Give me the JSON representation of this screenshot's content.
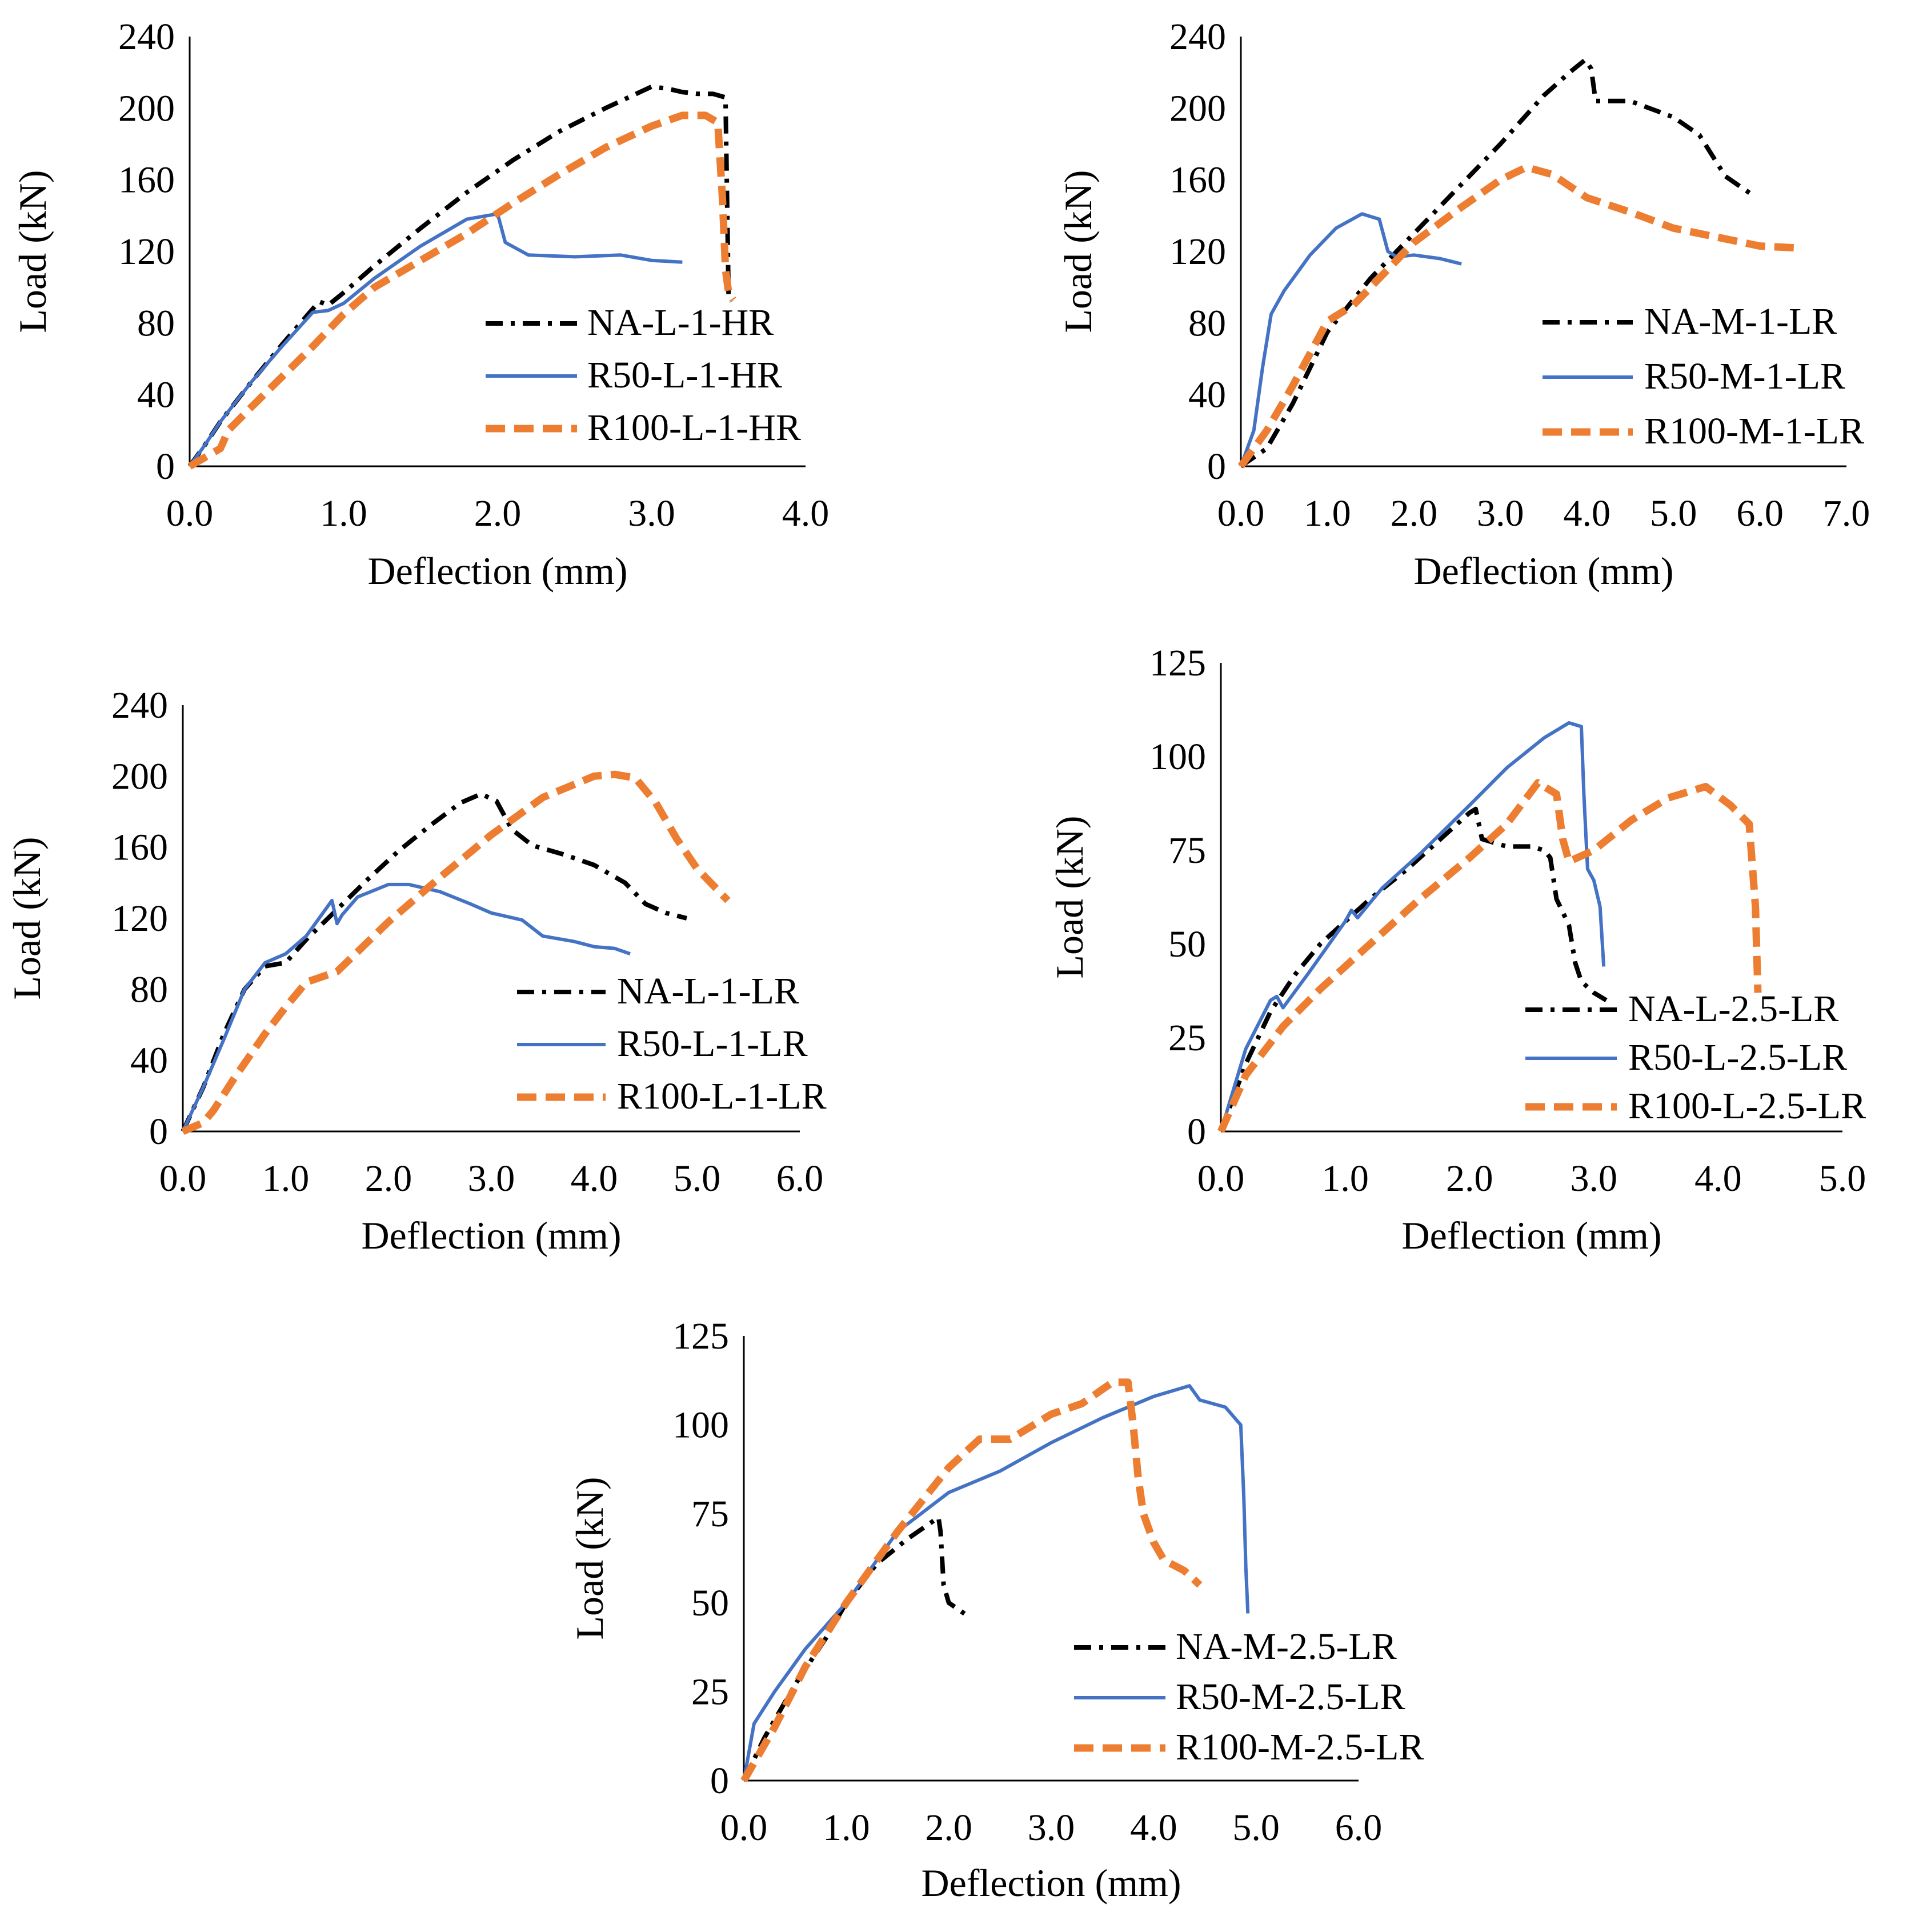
{
  "colors": {
    "NA": "#000000",
    "R50": "#4472C4",
    "R100": "#ED7D31",
    "axis": "#000000"
  },
  "chart_data": [
    {
      "type": "line",
      "panel": "top-left",
      "title": "",
      "xlabel": "Deflection (mm)",
      "ylabel": "Load (kN)",
      "xlim": [
        0,
        4
      ],
      "ylim": [
        0,
        240
      ],
      "xticks": [
        "0.0",
        "1.0",
        "2.0",
        "3.0",
        "4.0"
      ],
      "yticks": [
        "0",
        "40",
        "80",
        "120",
        "160",
        "200",
        "240"
      ],
      "grid": false,
      "legend_position": "lower-right",
      "series": [
        {
          "name": "NA-L-1-HR",
          "style": "dashdot",
          "color_key": "NA",
          "x": [
            0,
            0.1,
            0.2,
            0.4,
            0.6,
            0.8,
            0.84,
            0.9,
            1.0,
            1.2,
            1.5,
            1.8,
            2.1,
            2.4,
            2.7,
            2.9,
            3.0,
            3.1,
            3.2,
            3.3,
            3.4,
            3.48,
            3.5,
            3.52
          ],
          "y": [
            0,
            12,
            25,
            47,
            68,
            88,
            92,
            90,
            97,
            112,
            133,
            153,
            171,
            187,
            200,
            208,
            212,
            211,
            209,
            208,
            208,
            206,
            95,
            92
          ]
        },
        {
          "name": "R50-L-1-HR",
          "style": "solid",
          "color_key": "R50",
          "x": [
            0,
            0.1,
            0.2,
            0.4,
            0.6,
            0.8,
            0.9,
            1.0,
            1.2,
            1.5,
            1.8,
            2.0,
            2.05,
            2.2,
            2.5,
            2.8,
            3.0,
            3.2
          ],
          "y": [
            0,
            12,
            25,
            47,
            67,
            86,
            87,
            91,
            105,
            123,
            138,
            141,
            125,
            118,
            117,
            118,
            115,
            114
          ]
        },
        {
          "name": "R100-L-1-HR",
          "style": "dashed",
          "color_key": "R100",
          "x": [
            0,
            0.2,
            0.25,
            0.4,
            0.6,
            0.8,
            1.0,
            1.2,
            1.5,
            1.8,
            2.1,
            2.4,
            2.7,
            3.0,
            3.2,
            3.35,
            3.43,
            3.46,
            3.48,
            3.5,
            3.53
          ],
          "y": [
            0,
            10,
            20,
            33,
            50,
            67,
            85,
            100,
            115,
            130,
            147,
            163,
            178,
            190,
            196,
            196,
            192,
            150,
            110,
            97,
            93
          ]
        }
      ]
    },
    {
      "type": "line",
      "panel": "top-right",
      "title": "",
      "xlabel": "Deflection (mm)",
      "ylabel": "Load (kN)",
      "xlim": [
        0,
        7
      ],
      "ylim": [
        0,
        240
      ],
      "xticks": [
        "0.0",
        "1.0",
        "2.0",
        "3.0",
        "4.0",
        "5.0",
        "6.0",
        "7.0"
      ],
      "yticks": [
        "0",
        "40",
        "80",
        "120",
        "160",
        "200",
        "240"
      ],
      "grid": false,
      "legend_position": "lower-right",
      "series": [
        {
          "name": "NA-M-1-LR",
          "style": "dashdot",
          "color_key": "NA",
          "x": [
            0,
            0.3,
            0.6,
            1.0,
            1.5,
            2.0,
            2.5,
            3.0,
            3.5,
            3.8,
            3.98,
            4.05,
            4.1,
            4.5,
            5.0,
            5.3,
            5.6,
            5.9
          ],
          "y": [
            0,
            10,
            35,
            75,
            105,
            130,
            155,
            180,
            207,
            220,
            227,
            222,
            204,
            204,
            195,
            185,
            162,
            152
          ]
        },
        {
          "name": "R50-M-1-LR",
          "style": "solid",
          "color_key": "R50",
          "x": [
            0,
            0.15,
            0.25,
            0.35,
            0.5,
            0.8,
            1.1,
            1.4,
            1.6,
            1.7,
            1.8,
            2.0,
            2.3,
            2.55
          ],
          "y": [
            0,
            20,
            55,
            85,
            98,
            118,
            133,
            141,
            138,
            120,
            117,
            118,
            116,
            113
          ]
        },
        {
          "name": "R100-M-1-LR",
          "style": "dashed",
          "color_key": "R100",
          "x": [
            0,
            0.3,
            0.6,
            0.9,
            1.0,
            1.3,
            1.6,
            2.0,
            2.5,
            3.0,
            3.3,
            3.6,
            4.0,
            4.5,
            5.0,
            5.5,
            6.0,
            6.4
          ],
          "y": [
            0,
            20,
            45,
            72,
            81,
            90,
            105,
            125,
            143,
            160,
            167,
            163,
            150,
            142,
            133,
            128,
            123,
            122
          ]
        }
      ]
    },
    {
      "type": "line",
      "panel": "middle-left",
      "title": "",
      "xlabel": "Deflection (mm)",
      "ylabel": "Load (kN)",
      "xlim": [
        0,
        6
      ],
      "ylim": [
        0,
        240
      ],
      "xticks": [
        "0.0",
        "1.0",
        "2.0",
        "3.0",
        "4.0",
        "5.0",
        "6.0"
      ],
      "yticks": [
        "0",
        "40",
        "80",
        "120",
        "160",
        "200",
        "240"
      ],
      "grid": false,
      "legend_position": "lower-right",
      "series": [
        {
          "name": "NA-L-1-LR",
          "style": "dashdot",
          "color_key": "NA",
          "x": [
            0,
            0.2,
            0.4,
            0.6,
            0.8,
            1.0,
            1.2,
            1.5,
            1.8,
            2.1,
            2.4,
            2.7,
            2.9,
            3.05,
            3.2,
            3.4,
            3.7,
            4.0,
            4.3,
            4.5,
            4.7,
            4.9
          ],
          "y": [
            0,
            25,
            55,
            80,
            93,
            95,
            108,
            125,
            142,
            158,
            172,
            185,
            190,
            186,
            170,
            161,
            156,
            150,
            140,
            128,
            123,
            120
          ]
        },
        {
          "name": "R50-L-1-LR",
          "style": "solid",
          "color_key": "R50",
          "x": [
            0,
            0.2,
            0.4,
            0.6,
            0.8,
            1.0,
            1.2,
            1.45,
            1.5,
            1.55,
            1.7,
            2.0,
            2.2,
            2.5,
            2.8,
            3.0,
            3.3,
            3.5,
            3.8,
            4.0,
            4.2,
            4.35
          ],
          "y": [
            0,
            25,
            52,
            80,
            95,
            100,
            110,
            130,
            117,
            122,
            132,
            139,
            139,
            135,
            128,
            123,
            119,
            110,
            107,
            104,
            103,
            100
          ]
        },
        {
          "name": "R100-L-1-LR",
          "style": "dashed",
          "color_key": "R100",
          "x": [
            0,
            0.2,
            0.3,
            0.5,
            0.8,
            1.0,
            1.2,
            1.5,
            2.0,
            2.5,
            3.0,
            3.5,
            4.0,
            4.2,
            4.4,
            4.6,
            4.8,
            5.0,
            5.3
          ],
          "y": [
            0,
            5,
            12,
            30,
            55,
            70,
            84,
            90,
            118,
            143,
            167,
            188,
            200,
            201,
            199,
            185,
            165,
            148,
            130
          ]
        }
      ]
    },
    {
      "type": "line",
      "panel": "middle-right",
      "title": "",
      "xlabel": "Deflection (mm)",
      "ylabel": "Load (kN)",
      "xlim": [
        0,
        5
      ],
      "ylim": [
        0,
        125
      ],
      "xticks": [
        "0.0",
        "1.0",
        "2.0",
        "3.0",
        "4.0",
        "5.0"
      ],
      "yticks": [
        "0",
        "25",
        "50",
        "75",
        "100",
        "125"
      ],
      "grid": false,
      "legend_position": "lower-right",
      "series": [
        {
          "name": "NA-L-2.5-LR",
          "style": "dashdot",
          "color_key": "NA",
          "x": [
            0,
            0.2,
            0.4,
            0.6,
            0.8,
            1.0,
            1.2,
            1.5,
            1.8,
            2.0,
            2.05,
            2.1,
            2.3,
            2.5,
            2.6,
            2.65,
            2.7,
            2.8,
            2.85,
            2.9,
            3.0,
            3.1
          ],
          "y": [
            0,
            18,
            32,
            42,
            50,
            56,
            62,
            70,
            79,
            85,
            86,
            78,
            76,
            76,
            75,
            73,
            62,
            55,
            45,
            40,
            37,
            35
          ]
        },
        {
          "name": "R50-L-2.5-LR",
          "style": "solid",
          "color_key": "R50",
          "x": [
            0,
            0.2,
            0.4,
            0.45,
            0.5,
            0.7,
            1.0,
            1.05,
            1.1,
            1.3,
            1.6,
            2.0,
            2.3,
            2.6,
            2.8,
            2.9,
            2.92,
            2.95,
            3.0,
            3.05,
            3.08
          ],
          "y": [
            0,
            22,
            35,
            36,
            33,
            42,
            56,
            59,
            57,
            65,
            74,
            87,
            97,
            105,
            109,
            108,
            90,
            70,
            67,
            60,
            44
          ]
        },
        {
          "name": "R100-L-2.5-LR",
          "style": "dashed",
          "color_key": "R100",
          "x": [
            0,
            0.2,
            0.5,
            0.8,
            1.0,
            1.3,
            1.6,
            2.0,
            2.3,
            2.55,
            2.7,
            2.75,
            2.8,
            3.0,
            3.3,
            3.6,
            3.9,
            4.1,
            4.25,
            4.3,
            4.32
          ],
          "y": [
            0,
            15,
            28,
            38,
            44,
            53,
            62,
            73,
            82,
            93,
            90,
            78,
            72,
            75,
            83,
            89,
            92,
            87,
            82,
            60,
            37
          ]
        }
      ]
    },
    {
      "type": "line",
      "panel": "bottom-center",
      "title": "",
      "xlabel": "Deflection (mm)",
      "ylabel": "Load (kN)",
      "xlim": [
        0,
        6
      ],
      "ylim": [
        0,
        125
      ],
      "xticks": [
        "0.0",
        "1.0",
        "2.0",
        "3.0",
        "4.0",
        "5.0",
        "6.0"
      ],
      "yticks": [
        "0",
        "25",
        "50",
        "75",
        "100",
        "125"
      ],
      "grid": false,
      "legend_position": "lower-right",
      "series": [
        {
          "name": "NA-M-2.5-LR",
          "style": "dashdot",
          "color_key": "NA",
          "x": [
            0,
            0.2,
            0.5,
            0.8,
            1.0,
            1.3,
            1.6,
            1.8,
            1.9,
            1.92,
            1.95,
            2.0,
            2.1,
            2.2
          ],
          "y": [
            0,
            12,
            27,
            40,
            50,
            61,
            68,
            72,
            74,
            70,
            55,
            50,
            48,
            46
          ]
        },
        {
          "name": "R50-M-2.5-LR",
          "style": "solid",
          "color_key": "R50",
          "x": [
            0,
            0.1,
            0.3,
            0.6,
            1.0,
            1.5,
            2.0,
            2.5,
            3.0,
            3.5,
            4.0,
            4.35,
            4.45,
            4.7,
            4.85,
            4.88,
            4.9,
            4.92
          ],
          "y": [
            0,
            16,
            25,
            37,
            50,
            70,
            81,
            87,
            95,
            102,
            108,
            111,
            107,
            105,
            100,
            80,
            60,
            47
          ]
        },
        {
          "name": "R100-M-2.5-LR",
          "style": "dashed",
          "color_key": "R100",
          "x": [
            0,
            0.3,
            0.6,
            1.0,
            1.5,
            2.0,
            2.3,
            2.6,
            3.0,
            3.3,
            3.6,
            3.75,
            3.8,
            3.85,
            3.9,
            4.0,
            4.1,
            4.3,
            4.45
          ],
          "y": [
            0,
            15,
            32,
            50,
            70,
            88,
            96,
            96,
            103,
            106,
            112,
            112,
            100,
            85,
            75,
            67,
            62,
            59,
            55
          ]
        }
      ]
    }
  ]
}
